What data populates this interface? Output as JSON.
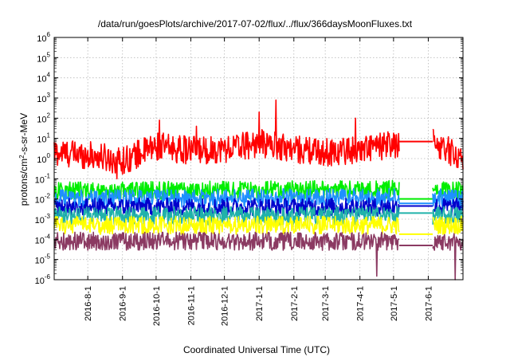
{
  "chart_data": {
    "type": "line",
    "title": "/data/run/goesPlots/archive/2017-07-02/flux/../flux/366daysMoonFluxes.txt",
    "xlabel": "Coordinated Universal Time (UTC)",
    "ylabel_parts": [
      "protons/cm",
      "2",
      "-s-sr-MeV"
    ],
    "y_scale": "log",
    "ylim_exponents": [
      -6,
      6
    ],
    "y_tick_exponents": [
      -6,
      -5,
      -4,
      -3,
      -2,
      -1,
      0,
      1,
      2,
      3,
      4,
      5,
      6
    ],
    "y_tick_base": "10",
    "xlim": [
      "2016-07-02",
      "2017-07-02"
    ],
    "x_ticks": [
      "2016-8-1",
      "2016-9-1",
      "2016-10-1",
      "2016-11-1",
      "2016-12-1",
      "2017-1-1",
      "2017-2-1",
      "2017-3-1",
      "2017-4-1",
      "2017-5-1",
      "2017-6-1"
    ],
    "grid": true,
    "data_gap": [
      "2017-05-06",
      "2017-06-05"
    ],
    "series": [
      {
        "color": "#ff0000",
        "points": [
          [
            "2016-07-02",
            2
          ],
          [
            "2016-08-01",
            1.5
          ],
          [
            "2016-09-01",
            0.8
          ],
          [
            "2016-10-01",
            4
          ],
          [
            "2016-11-01",
            2.5
          ],
          [
            "2016-12-01",
            3
          ],
          [
            "2017-01-01",
            6
          ],
          [
            "2017-02-01",
            3
          ],
          [
            "2017-03-01",
            2
          ],
          [
            "2017-04-01",
            3
          ],
          [
            "2017-05-06",
            5
          ],
          [
            "2017-06-05",
            7
          ],
          [
            "2017-07-02",
            1
          ]
        ],
        "spikes": [
          [
            "2016-08-27",
            0.1
          ],
          [
            "2016-10-04",
            80
          ],
          [
            "2016-11-06",
            40
          ],
          [
            "2017-01-16",
            800
          ],
          [
            "2017-01-01",
            200
          ],
          [
            "2017-03-28",
            100
          ]
        ],
        "gap_level": 7
      },
      {
        "color": "#00ee00",
        "points": [
          [
            "2016-07-02",
            0.025
          ],
          [
            "2017-05-06",
            0.03
          ],
          [
            "2017-06-05",
            0.03
          ],
          [
            "2017-07-02",
            0.025
          ]
        ],
        "gap_level": 0.01
      },
      {
        "color": "#1e90ff",
        "points": [
          [
            "2016-07-02",
            0.01
          ],
          [
            "2017-05-06",
            0.012
          ],
          [
            "2017-06-05",
            0.012
          ],
          [
            "2017-07-02",
            0.01
          ]
        ],
        "gap_level": 0.006
      },
      {
        "color": "#0000cc",
        "points": [
          [
            "2016-07-02",
            0.004
          ],
          [
            "2017-05-06",
            0.004
          ],
          [
            "2017-06-05",
            0.004
          ],
          [
            "2017-07-02",
            0.004
          ]
        ],
        "gap_level": 0.0045
      },
      {
        "color": "#20b2aa",
        "points": [
          [
            "2016-07-02",
            0.0015
          ],
          [
            "2017-05-06",
            0.0015
          ],
          [
            "2017-06-05",
            0.0015
          ],
          [
            "2017-07-02",
            0.0015
          ]
        ],
        "gap_level": 0.002
      },
      {
        "color": "#ffff00",
        "points": [
          [
            "2016-07-02",
            0.0005
          ],
          [
            "2017-05-06",
            0.0005
          ],
          [
            "2017-06-05",
            0.0005
          ],
          [
            "2017-07-02",
            0.0005
          ]
        ],
        "gap_level": 0.00018
      },
      {
        "color": "#8b3a62",
        "points": [
          [
            "2016-07-02",
            8e-05
          ],
          [
            "2017-05-06",
            8e-05
          ],
          [
            "2017-06-05",
            8e-05
          ],
          [
            "2017-07-02",
            8e-05
          ]
        ],
        "spikes": [
          [
            "2017-04-16",
            1.5e-06
          ],
          [
            "2017-06-25",
            1e-06
          ]
        ],
        "gap_level": 5e-05
      }
    ]
  }
}
